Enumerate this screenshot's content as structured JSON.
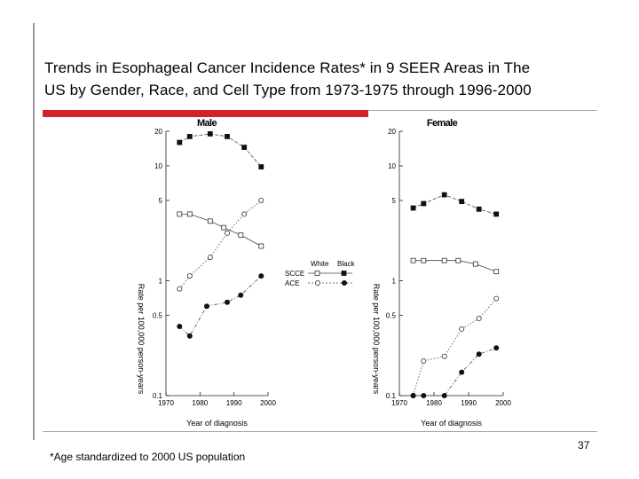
{
  "slide": {
    "title_line1": "Trends in Esophageal Cancer Incidence Rates* in 9 SEER Areas in The",
    "title_line2": "US by Gender, Race, and Cell Type from 1973-1975 through 1996-2000",
    "footnote": "*Age standardized to 2000 US population",
    "page_number": "37"
  },
  "colors": {
    "accent": "#d2232a",
    "line": "#444444",
    "text": "#000000"
  },
  "legend": {
    "col_white": "White",
    "col_black": "Black",
    "row_scce": "SCCE",
    "row_ace": "ACE"
  },
  "chart_data": [
    {
      "id": "male",
      "type": "line",
      "title": "Male",
      "xlabel": "Year of diagnosis",
      "ylabel": "Rate per 100,000 person-years",
      "yscale": "log",
      "xlim": [
        1970,
        2000
      ],
      "ylim": [
        0.1,
        20
      ],
      "xticks": [
        1970,
        1980,
        1990,
        2000
      ],
      "yticks": [
        20,
        10,
        5,
        1,
        0.5,
        0.1
      ],
      "series": [
        {
          "name": "SCCE White",
          "marker": "open-square",
          "style": "solid",
          "x": [
            1974,
            1977,
            1983,
            1987,
            1992,
            1998
          ],
          "y": [
            3.8,
            3.8,
            3.3,
            2.9,
            2.5,
            2.0
          ]
        },
        {
          "name": "SCCE Black",
          "marker": "filled-square",
          "style": "dashed",
          "x": [
            1974,
            1977,
            1983,
            1988,
            1993,
            1998
          ],
          "y": [
            16.0,
            18.0,
            19.0,
            18.0,
            14.5,
            9.8
          ]
        },
        {
          "name": "ACE White",
          "marker": "open-circle",
          "style": "dotted",
          "x": [
            1974,
            1977,
            1983,
            1988,
            1993,
            1998
          ],
          "y": [
            0.85,
            1.1,
            1.6,
            2.6,
            3.8,
            5.0
          ]
        },
        {
          "name": "ACE Black",
          "marker": "filled-circle",
          "style": "dashdot",
          "x": [
            1974,
            1977,
            1982,
            1988,
            1992,
            1998
          ],
          "y": [
            0.4,
            0.33,
            0.6,
            0.65,
            0.75,
            1.1
          ]
        }
      ]
    },
    {
      "id": "female",
      "type": "line",
      "title": "Female",
      "xlabel": "Year of diagnosis",
      "ylabel": "Rate per 100,000 person-years",
      "yscale": "log",
      "xlim": [
        1970,
        2000
      ],
      "ylim": [
        0.1,
        20
      ],
      "xticks": [
        1970,
        1980,
        1990,
        2000
      ],
      "yticks": [
        20,
        10,
        5,
        1,
        0.5,
        0.1
      ],
      "series": [
        {
          "name": "SCCE White",
          "marker": "open-square",
          "style": "solid",
          "x": [
            1974,
            1977,
            1983,
            1987,
            1992,
            1998
          ],
          "y": [
            1.5,
            1.5,
            1.5,
            1.5,
            1.4,
            1.2
          ]
        },
        {
          "name": "SCCE Black",
          "marker": "filled-square",
          "style": "dashed",
          "x": [
            1974,
            1977,
            1983,
            1988,
            1993,
            1998
          ],
          "y": [
            4.3,
            4.7,
            5.6,
            4.9,
            4.2,
            3.8
          ]
        },
        {
          "name": "ACE White",
          "marker": "open-circle",
          "style": "dotted",
          "x": [
            1974,
            1977,
            1983,
            1988,
            1993,
            1998
          ],
          "y": [
            0.1,
            0.2,
            0.22,
            0.38,
            0.47,
            0.7
          ]
        },
        {
          "name": "ACE Black",
          "marker": "filled-circle",
          "style": "dashdot",
          "x": [
            1974,
            1977,
            1983,
            1988,
            1993,
            1998
          ],
          "y": [
            0.1,
            0.1,
            0.1,
            0.16,
            0.23,
            0.26
          ]
        }
      ]
    }
  ]
}
